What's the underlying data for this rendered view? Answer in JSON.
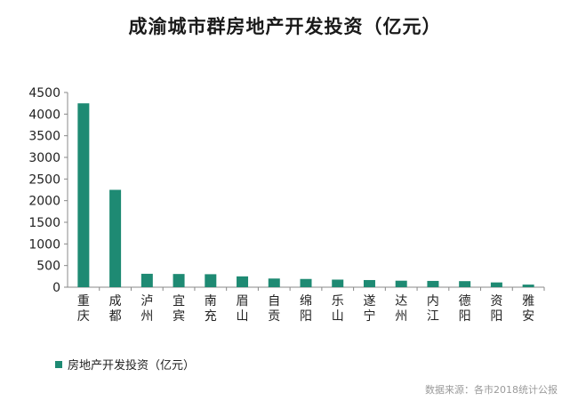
{
  "title": "成渝城市群房地产开发投资（亿元）",
  "source": "数据来源：各市2018统计公报",
  "colors": {
    "bar": "#1e8a73",
    "axis": "#888888"
  },
  "chart_data": {
    "type": "bar",
    "title": "成渝城市群房地产开发投资（亿元）",
    "categories": [
      "重庆",
      "成都",
      "泸州",
      "宜宾",
      "南充",
      "眉山",
      "自贡",
      "绵阳",
      "乐山",
      "遂宁",
      "达州",
      "内江",
      "德阳",
      "资阳",
      "雅安"
    ],
    "series": [
      {
        "name": "房地产开发投资（亿元）",
        "values": [
          4249,
          2250,
          310,
          305,
          300,
          250,
          200,
          190,
          175,
          165,
          150,
          145,
          140,
          110,
          60
        ]
      }
    ],
    "yticks": [
      "0",
      "500",
      "1000",
      "1500",
      "2000",
      "2500",
      "3000",
      "3500",
      "4000",
      "4500"
    ],
    "ylim": [
      0,
      4500
    ],
    "grid": false,
    "legend_position": "bottom-left"
  }
}
